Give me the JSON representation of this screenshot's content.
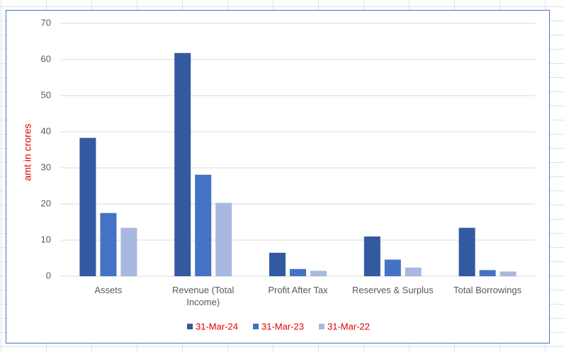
{
  "chart_data": {
    "type": "bar",
    "y_label": "amt in crores",
    "categories": [
      "Assets",
      "Revenue (Total Income)",
      "Profit After Tax",
      "Reserves & Surplus",
      "Total Borrowings"
    ],
    "series": [
      {
        "name": "31-Mar-24",
        "color": "#335aa1",
        "values": [
          38.3,
          61.8,
          6.5,
          11.0,
          13.4
        ]
      },
      {
        "name": "31-Mar-23",
        "color": "#4472c4",
        "values": [
          17.5,
          28.1,
          2.0,
          4.6,
          1.7
        ]
      },
      {
        "name": "31-Mar-22",
        "color": "#a9b8df",
        "values": [
          13.4,
          20.3,
          1.5,
          2.4,
          1.3
        ]
      }
    ],
    "ylim": [
      0,
      70
    ],
    "yticks": [
      0,
      10,
      20,
      30,
      40,
      50,
      60,
      70
    ],
    "grid": true,
    "legend": "bottom"
  }
}
